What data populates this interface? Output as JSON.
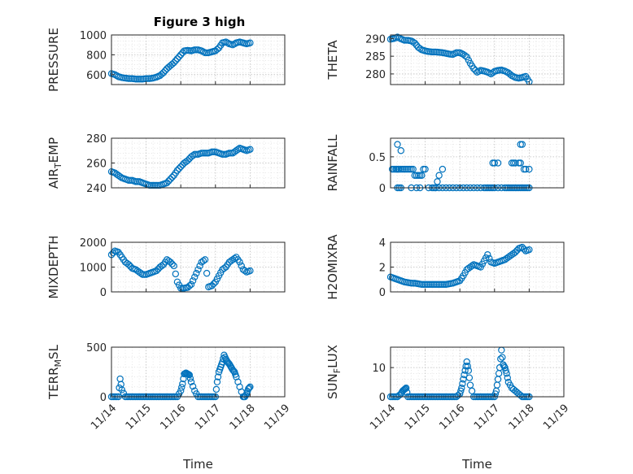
{
  "figure": {
    "title": "Figure 3 high"
  },
  "chart_data": [
    {
      "type": "scatter",
      "ylabel": "PRESSURE",
      "xlabel": "",
      "title": "Figure 3 high",
      "ylim": [
        500,
        1000
      ],
      "yticks": [
        600,
        800,
        1000
      ],
      "xlim": [
        0,
        5
      ],
      "x": [
        0.0,
        0.1,
        0.2,
        0.3,
        0.4,
        0.5,
        0.6,
        0.7,
        0.8,
        0.9,
        1.0,
        1.1,
        1.2,
        1.3,
        1.4,
        1.5,
        1.6,
        1.7,
        1.8,
        1.9,
        2.0,
        2.1,
        2.2,
        2.3,
        2.4,
        2.5,
        2.6,
        2.7,
        2.8,
        2.9,
        3.0,
        3.1,
        3.2,
        3.3,
        3.4,
        3.5,
        3.6,
        3.7,
        3.8,
        3.9,
        4.0
      ],
      "y": [
        610,
        600,
        580,
        570,
        565,
        560,
        560,
        555,
        555,
        555,
        560,
        560,
        565,
        575,
        590,
        620,
        660,
        690,
        720,
        760,
        800,
        840,
        845,
        840,
        850,
        850,
        840,
        820,
        820,
        830,
        840,
        870,
        920,
        930,
        910,
        900,
        920,
        930,
        920,
        910,
        920
      ]
    },
    {
      "type": "scatter",
      "ylabel": "THETA",
      "xlabel": "",
      "ylim": [
        277,
        291
      ],
      "yticks": [
        280,
        285,
        290
      ],
      "xlim": [
        0,
        5
      ],
      "x": [
        0.0,
        0.1,
        0.2,
        0.3,
        0.4,
        0.5,
        0.6,
        0.7,
        0.8,
        0.9,
        1.0,
        1.1,
        1.2,
        1.3,
        1.4,
        1.5,
        1.6,
        1.7,
        1.8,
        1.9,
        2.0,
        2.1,
        2.2,
        2.3,
        2.4,
        2.5,
        2.6,
        2.7,
        2.8,
        2.9,
        3.0,
        3.1,
        3.2,
        3.3,
        3.4,
        3.5,
        3.6,
        3.7,
        3.8,
        3.9,
        4.0
      ],
      "y": [
        289.8,
        290.0,
        290.4,
        289.9,
        289.5,
        289.5,
        289.3,
        288.7,
        287.5,
        286.8,
        286.5,
        286.3,
        286.2,
        286.2,
        286.1,
        286.0,
        285.8,
        285.6,
        285.5,
        286.0,
        286.0,
        285.5,
        284.8,
        283.0,
        281.5,
        280.5,
        281.0,
        280.8,
        280.5,
        280.0,
        280.7,
        281.0,
        281.1,
        280.8,
        280.3,
        279.5,
        279.0,
        278.8,
        279.0,
        279.3,
        277.8
      ]
    },
    {
      "type": "scatter",
      "ylabel": "AIR_TEMP",
      "ylabel_main": "AIR",
      "ylabel_sub": "T",
      "ylabel_rest": "EMP",
      "xlabel": "",
      "ylim": [
        240,
        280
      ],
      "yticks": [
        240,
        260,
        280
      ],
      "xlim": [
        0,
        5
      ],
      "x": [
        0.0,
        0.1,
        0.2,
        0.3,
        0.4,
        0.5,
        0.6,
        0.7,
        0.8,
        0.9,
        1.0,
        1.1,
        1.2,
        1.3,
        1.4,
        1.5,
        1.6,
        1.7,
        1.8,
        1.9,
        2.0,
        2.1,
        2.2,
        2.3,
        2.4,
        2.5,
        2.6,
        2.7,
        2.8,
        2.9,
        3.0,
        3.1,
        3.2,
        3.3,
        3.4,
        3.5,
        3.6,
        3.7,
        3.8,
        3.9,
        4.0
      ],
      "y": [
        253,
        252,
        250,
        248,
        247,
        246,
        246,
        245,
        245,
        244,
        243,
        242,
        242,
        242,
        242,
        243,
        244,
        247,
        250,
        254,
        257,
        260,
        262,
        265,
        267,
        267,
        268,
        268,
        268,
        269,
        269,
        268,
        267,
        267,
        268,
        268,
        270,
        272,
        271,
        270,
        271
      ]
    },
    {
      "type": "scatter",
      "ylabel": "RAINFALL",
      "xlabel": "",
      "ylim": [
        0,
        0.8
      ],
      "yticks": [
        0,
        0.5
      ],
      "xlim": [
        0,
        5
      ],
      "x": [
        0.05,
        0.1,
        0.15,
        0.18,
        0.22,
        0.25,
        0.3,
        0.35,
        0.4,
        0.45,
        0.5,
        0.55,
        0.6,
        0.65,
        0.7,
        0.75,
        0.8,
        0.85,
        0.9,
        0.95,
        1.0,
        1.1,
        1.2,
        1.3,
        1.35,
        1.4,
        1.5,
        1.6,
        1.7,
        1.8,
        1.9,
        2.0,
        2.1,
        2.2,
        2.3,
        2.4,
        2.5,
        2.6,
        2.7,
        2.75,
        2.8,
        2.85,
        2.9,
        2.95,
        3.0,
        3.1,
        3.2,
        3.3,
        3.35,
        3.4,
        3.45,
        3.5,
        3.55,
        3.6,
        3.65,
        3.7,
        3.75,
        3.8,
        3.85,
        3.9,
        3.95,
        4.0,
        0.2,
        0.25,
        0.3,
        0.6,
        0.75,
        0.85,
        1.25,
        1.3,
        1.4,
        1.5,
        2.95,
        3.0,
        3.1,
        3.5,
        3.55,
        3.6,
        3.7,
        3.75,
        3.85,
        3.9,
        4.0,
        0.2,
        0.3,
        3.75,
        3.8
      ],
      "y": [
        0.3,
        0.3,
        0.3,
        0.3,
        0.3,
        0.3,
        0.3,
        0.3,
        0.3,
        0.3,
        0.3,
        0.3,
        0.3,
        0.3,
        0.2,
        0.2,
        0.2,
        0.2,
        0.2,
        0.3,
        0.3,
        0,
        0,
        0,
        0.1,
        0.2,
        0.3,
        0,
        0,
        0,
        0,
        0,
        0,
        0,
        0,
        0,
        0,
        0,
        0,
        0,
        0,
        0,
        0,
        0,
        0,
        0,
        0,
        0,
        0,
        0,
        0,
        0,
        0,
        0,
        0,
        0,
        0,
        0,
        0,
        0,
        0,
        0,
        0,
        0,
        0,
        0,
        0,
        0,
        0,
        0,
        0,
        0,
        0.4,
        0.4,
        0.4,
        0.4,
        0.4,
        0.4,
        0.4,
        0.4,
        0.3,
        0.3,
        0.3,
        0.7,
        0.6,
        0.7,
        0.7
      ]
    },
    {
      "type": "scatter",
      "ylabel": "MIXDEPTH",
      "xlabel": "",
      "ylim": [
        0,
        2000
      ],
      "yticks": [
        0,
        1000,
        2000
      ],
      "xlim": [
        0,
        5
      ],
      "x": [
        0.0,
        0.1,
        0.2,
        0.3,
        0.4,
        0.5,
        0.6,
        0.7,
        0.8,
        0.9,
        1.0,
        1.1,
        1.2,
        1.3,
        1.4,
        1.5,
        1.6,
        1.7,
        1.8,
        1.9,
        2.0,
        2.1,
        2.2,
        2.3,
        2.4,
        2.5,
        2.6,
        2.7,
        2.8,
        2.9,
        3.0,
        3.1,
        3.2,
        3.3,
        3.4,
        3.5,
        3.6,
        3.7,
        3.8,
        3.9,
        4.0
      ],
      "y": [
        1500,
        1650,
        1600,
        1400,
        1200,
        1100,
        950,
        900,
        800,
        700,
        700,
        750,
        800,
        850,
        1000,
        1100,
        1300,
        1200,
        1050,
        400,
        150,
        150,
        180,
        300,
        600,
        900,
        1200,
        1300,
        200,
        250,
        400,
        650,
        900,
        1000,
        1200,
        1300,
        1400,
        1200,
        900,
        800,
        850
      ]
    },
    {
      "type": "scatter",
      "ylabel": "H2OMIXRA",
      "xlabel": "",
      "ylim": [
        0,
        4
      ],
      "yticks": [
        0,
        2,
        4
      ],
      "xlim": [
        0,
        5
      ],
      "x": [
        0.0,
        0.1,
        0.2,
        0.3,
        0.4,
        0.5,
        0.6,
        0.7,
        0.8,
        0.9,
        1.0,
        1.1,
        1.2,
        1.3,
        1.4,
        1.5,
        1.6,
        1.7,
        1.8,
        1.9,
        2.0,
        2.1,
        2.2,
        2.3,
        2.4,
        2.5,
        2.6,
        2.7,
        2.8,
        2.9,
        3.0,
        3.1,
        3.2,
        3.3,
        3.4,
        3.5,
        3.6,
        3.7,
        3.8,
        3.9,
        4.0
      ],
      "y": [
        1.2,
        1.1,
        1.0,
        0.9,
        0.8,
        0.75,
        0.7,
        0.7,
        0.65,
        0.6,
        0.6,
        0.6,
        0.6,
        0.6,
        0.6,
        0.6,
        0.6,
        0.65,
        0.7,
        0.8,
        0.9,
        1.3,
        1.8,
        2.0,
        2.2,
        2.1,
        2.0,
        2.5,
        3.0,
        2.4,
        2.3,
        2.4,
        2.5,
        2.6,
        2.8,
        3.0,
        3.2,
        3.5,
        3.6,
        3.3,
        3.4
      ]
    },
    {
      "type": "scatter",
      "ylabel": "TERR_MSL",
      "ylabel_main": "TERR",
      "ylabel_sub": "M",
      "ylabel_rest": "SL",
      "xlabel": "Time",
      "ylim": [
        0,
        500
      ],
      "yticks": [
        0,
        500
      ],
      "xlim": [
        0,
        5
      ],
      "xticklabels": [
        "11/14",
        "11/15",
        "11/16",
        "11/17",
        "11/18",
        "11/19"
      ],
      "x": [
        0.0,
        0.1,
        0.2,
        0.25,
        0.3,
        0.4,
        0.5,
        0.6,
        0.7,
        0.8,
        0.9,
        1.0,
        1.1,
        1.2,
        1.3,
        1.4,
        1.5,
        1.6,
        1.7,
        1.8,
        1.9,
        2.0,
        2.05,
        2.1,
        2.15,
        2.2,
        2.25,
        2.3,
        2.4,
        2.5,
        2.6,
        2.7,
        2.8,
        2.9,
        3.0,
        3.05,
        3.1,
        3.15,
        3.2,
        3.25,
        3.3,
        3.35,
        3.4,
        3.45,
        3.5,
        3.55,
        3.6,
        3.7,
        3.8,
        3.85,
        3.9,
        3.95,
        4.0
      ],
      "y": [
        0,
        0,
        0,
        180,
        70,
        0,
        0,
        0,
        0,
        0,
        0,
        0,
        0,
        0,
        0,
        0,
        0,
        0,
        0,
        0,
        0,
        60,
        130,
        230,
        240,
        230,
        220,
        150,
        60,
        0,
        0,
        0,
        0,
        0,
        0,
        150,
        250,
        300,
        350,
        420,
        380,
        350,
        330,
        300,
        270,
        250,
        200,
        100,
        0,
        0,
        30,
        80,
        100
      ]
    },
    {
      "type": "scatter",
      "ylabel": "SUN_FLUX",
      "ylabel_main": "SUN",
      "ylabel_sub": "F",
      "ylabel_rest": "LUX",
      "xlabel": "Time",
      "ylim": [
        0,
        17
      ],
      "yticks": [
        0,
        10
      ],
      "xlim": [
        0,
        5
      ],
      "xticklabels": [
        "11/14",
        "11/15",
        "11/16",
        "11/17",
        "11/18",
        "11/19"
      ],
      "x": [
        0.0,
        0.1,
        0.2,
        0.3,
        0.35,
        0.4,
        0.45,
        0.5,
        0.6,
        0.7,
        0.8,
        0.9,
        1.0,
        1.1,
        1.2,
        1.3,
        1.4,
        1.5,
        1.6,
        1.7,
        1.8,
        1.9,
        2.0,
        2.05,
        2.1,
        2.15,
        2.2,
        2.25,
        2.3,
        2.4,
        2.5,
        2.6,
        2.7,
        2.8,
        2.9,
        3.0,
        3.05,
        3.1,
        3.15,
        3.2,
        3.25,
        3.3,
        3.35,
        3.4,
        3.5,
        3.6,
        3.7,
        3.8,
        3.9,
        4.0
      ],
      "y": [
        0,
        0,
        0,
        1,
        2,
        2.5,
        3,
        0,
        0,
        0,
        0,
        0,
        0,
        0,
        0,
        0,
        0,
        0,
        0,
        0,
        0,
        0,
        1,
        3,
        6,
        9,
        12,
        9,
        4,
        0,
        0,
        0,
        0,
        0,
        0,
        0,
        2,
        6,
        10,
        16,
        11,
        10,
        8,
        5,
        3,
        2,
        1,
        0,
        0,
        0
      ]
    }
  ]
}
